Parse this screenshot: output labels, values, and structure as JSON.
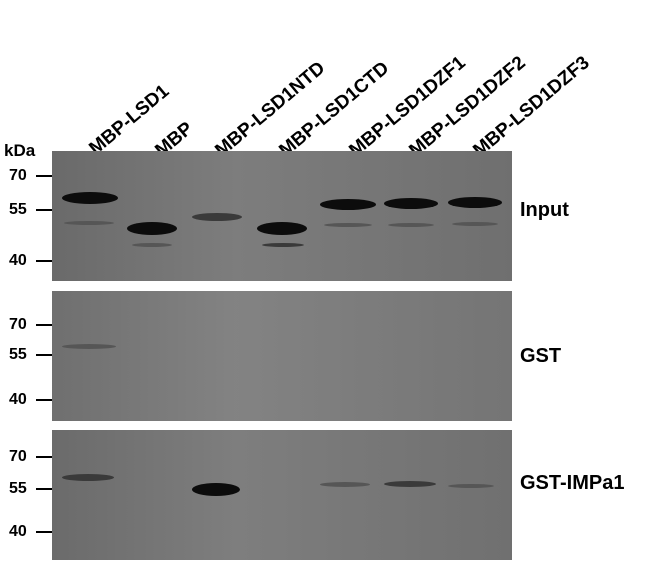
{
  "lanes": [
    "MBP-LSD1",
    "MBP",
    "MBP-LSD1NTD",
    "MBP-LSD1CTD",
    "MBP-LSD1DZF1",
    "MBP-LSD1DZF2",
    "MBP-LSD1DZF3"
  ],
  "unit": "kDa",
  "markers": [
    "70",
    "55",
    "40"
  ],
  "panels": [
    {
      "label": "Input"
    },
    {
      "label": "GST"
    },
    {
      "label": "GST-IMPa1"
    }
  ]
}
